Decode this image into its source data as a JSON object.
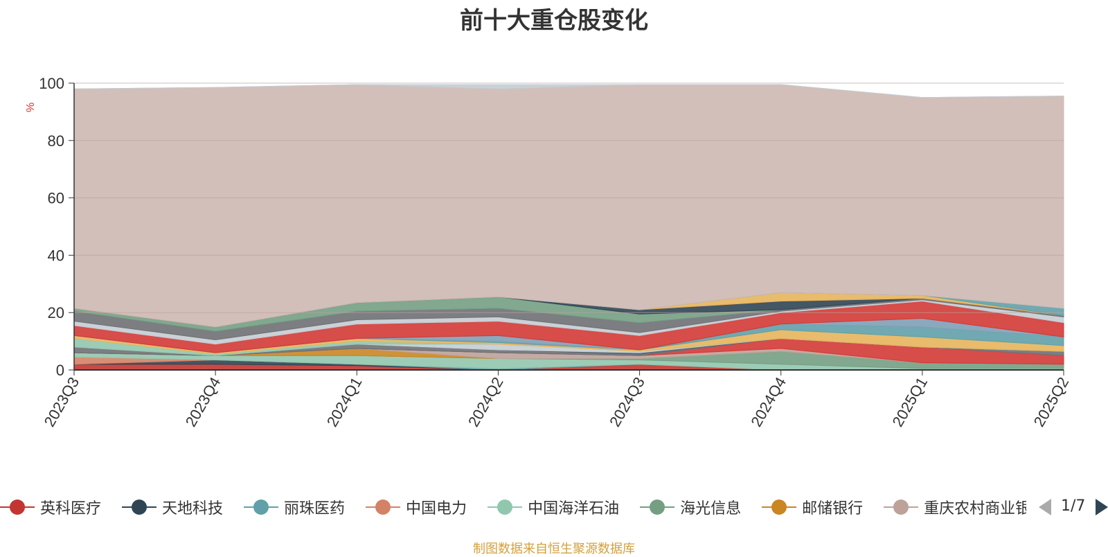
{
  "chart_data": {
    "type": "area",
    "stacked": true,
    "title": "前十大重仓股变化",
    "ylabel": "%",
    "ylim": [
      0,
      100
    ],
    "yticks": [
      0,
      20,
      40,
      60,
      80,
      100
    ],
    "grid": true,
    "categories": [
      "2023Q3",
      "2023Q4",
      "2024Q1",
      "2024Q2",
      "2024Q3",
      "2024Q4",
      "2025Q1",
      "2025Q2"
    ],
    "series": [
      {
        "name": "英科医疗",
        "color": "#c23531",
        "values": [
          2.0,
          2.0,
          1.5,
          0.0,
          2.0,
          0.0,
          0.0,
          0.0
        ]
      },
      {
        "name": "天地科技",
        "color": "#2f4554",
        "values": [
          0.0,
          1.5,
          0.5,
          0.0,
          0.0,
          0.0,
          0.0,
          0.0
        ]
      },
      {
        "name": "丽珠医药",
        "color": "#61a0a8",
        "values": [
          0.0,
          0.0,
          0.0,
          0.5,
          0.0,
          0.0,
          0.0,
          0.0
        ]
      },
      {
        "name": "中国电力",
        "color": "#d48265",
        "values": [
          2.5,
          0.0,
          0.0,
          0.0,
          0.0,
          0.0,
          0.0,
          0.0
        ]
      },
      {
        "name": "中国海洋石油",
        "color": "#91c7ae",
        "values": [
          1.5,
          1.5,
          3.0,
          3.5,
          1.5,
          2.0,
          0.5,
          0.5
        ]
      },
      {
        "name": "海光信息",
        "color": "#749f83",
        "values": [
          0.0,
          0.0,
          0.0,
          0.0,
          0.5,
          4.5,
          2.0,
          1.5
        ]
      },
      {
        "name": "邮储银行",
        "color": "#ca8622",
        "values": [
          0.0,
          0.0,
          2.5,
          0.0,
          0.0,
          0.0,
          0.0,
          0.0
        ]
      },
      {
        "name": "重庆农村商业银行",
        "color": "#bda29a",
        "values": [
          0.0,
          0.0,
          0.0,
          2.0,
          1.0,
          1.0,
          0.0,
          0.0
        ]
      },
      {
        "name": "",
        "color": "#d23a36",
        "values": [
          0.0,
          0.0,
          0.0,
          0.0,
          0.0,
          3.5,
          5.5,
          3.0
        ]
      },
      {
        "name": "",
        "color": "#6e7074",
        "values": [
          2.0,
          0.0,
          1.5,
          1.0,
          0.5,
          0.0,
          0.0,
          1.5
        ]
      },
      {
        "name": "",
        "color": "#546570",
        "values": [
          0.0,
          0.0,
          0.0,
          0.0,
          0.5,
          0.0,
          0.0,
          0.0
        ]
      },
      {
        "name": "",
        "color": "#c4ccd3",
        "values": [
          0.0,
          0.0,
          0.0,
          2.0,
          0.5,
          0.0,
          0.0,
          0.0
        ]
      },
      {
        "name": "",
        "color": "#91c7ae",
        "values": [
          3.0,
          0.5,
          1.0,
          0.0,
          0.0,
          0.0,
          0.0,
          0.0
        ]
      },
      {
        "name": "",
        "color": "#e5b55c",
        "values": [
          1.0,
          0.5,
          1.0,
          0.5,
          0.5,
          3.0,
          3.5,
          2.0
        ]
      },
      {
        "name": "",
        "color": "#61a0a8",
        "values": [
          0.0,
          0.0,
          0.0,
          0.5,
          0.0,
          2.0,
          3.5,
          3.0
        ]
      },
      {
        "name": "",
        "color": "#7f9fb6",
        "values": [
          0.0,
          0.0,
          0.0,
          2.0,
          0.0,
          0.0,
          3.0,
          0.0
        ]
      },
      {
        "name": "",
        "color": "#d23a36",
        "values": [
          3.5,
          3.0,
          5.0,
          5.0,
          5.0,
          4.0,
          6.0,
          5.0
        ]
      },
      {
        "name": "",
        "color": "#c4ccd3",
        "values": [
          1.5,
          1.5,
          1.5,
          1.5,
          1.0,
          0.5,
          0.5,
          2.0
        ]
      },
      {
        "name": "",
        "color": "#6e7074",
        "values": [
          3.5,
          3.0,
          3.0,
          3.0,
          3.5,
          0.5,
          0.5,
          0.5
        ]
      },
      {
        "name": "",
        "color": "#749f83",
        "values": [
          1.0,
          1.5,
          3.0,
          4.0,
          3.0,
          0.0,
          0.0,
          0.0
        ]
      },
      {
        "name": "",
        "color": "#2f4554",
        "values": [
          0.0,
          0.0,
          0.0,
          0.0,
          1.5,
          3.0,
          0.0,
          0.0
        ]
      },
      {
        "name": "",
        "color": "#d23a36",
        "values": [
          0.0,
          0.0,
          0.0,
          0.0,
          0.0,
          0.0,
          0.0,
          0.0
        ]
      },
      {
        "name": "",
        "color": "#e5b55c",
        "values": [
          0.0,
          0.0,
          0.0,
          0.0,
          0.0,
          3.0,
          1.0,
          0.0
        ]
      },
      {
        "name": "",
        "color": "#61a0a8",
        "values": [
          0.0,
          0.0,
          0.0,
          0.0,
          0.0,
          0.0,
          0.0,
          2.5
        ]
      },
      {
        "name": "",
        "color": "#cdb8b3",
        "values": [
          76.5,
          83.5,
          76.0,
          72.5,
          78.5,
          72.5,
          69.0,
          74.0
        ]
      },
      {
        "name": "",
        "color": "#c4ccd3",
        "values": [
          0.0,
          0.0,
          0.0,
          1.5,
          0.0,
          0.0,
          0.0,
          0.0
        ]
      }
    ]
  },
  "legend": {
    "page_indicator": "1/7"
  },
  "source_note": "制图数据来自恒生聚源数据库",
  "colors": {
    "axis_tick_text": "#333333",
    "y_unit": "#e03030",
    "grid": "#b9a39e",
    "source_note": "#d4a03c"
  }
}
